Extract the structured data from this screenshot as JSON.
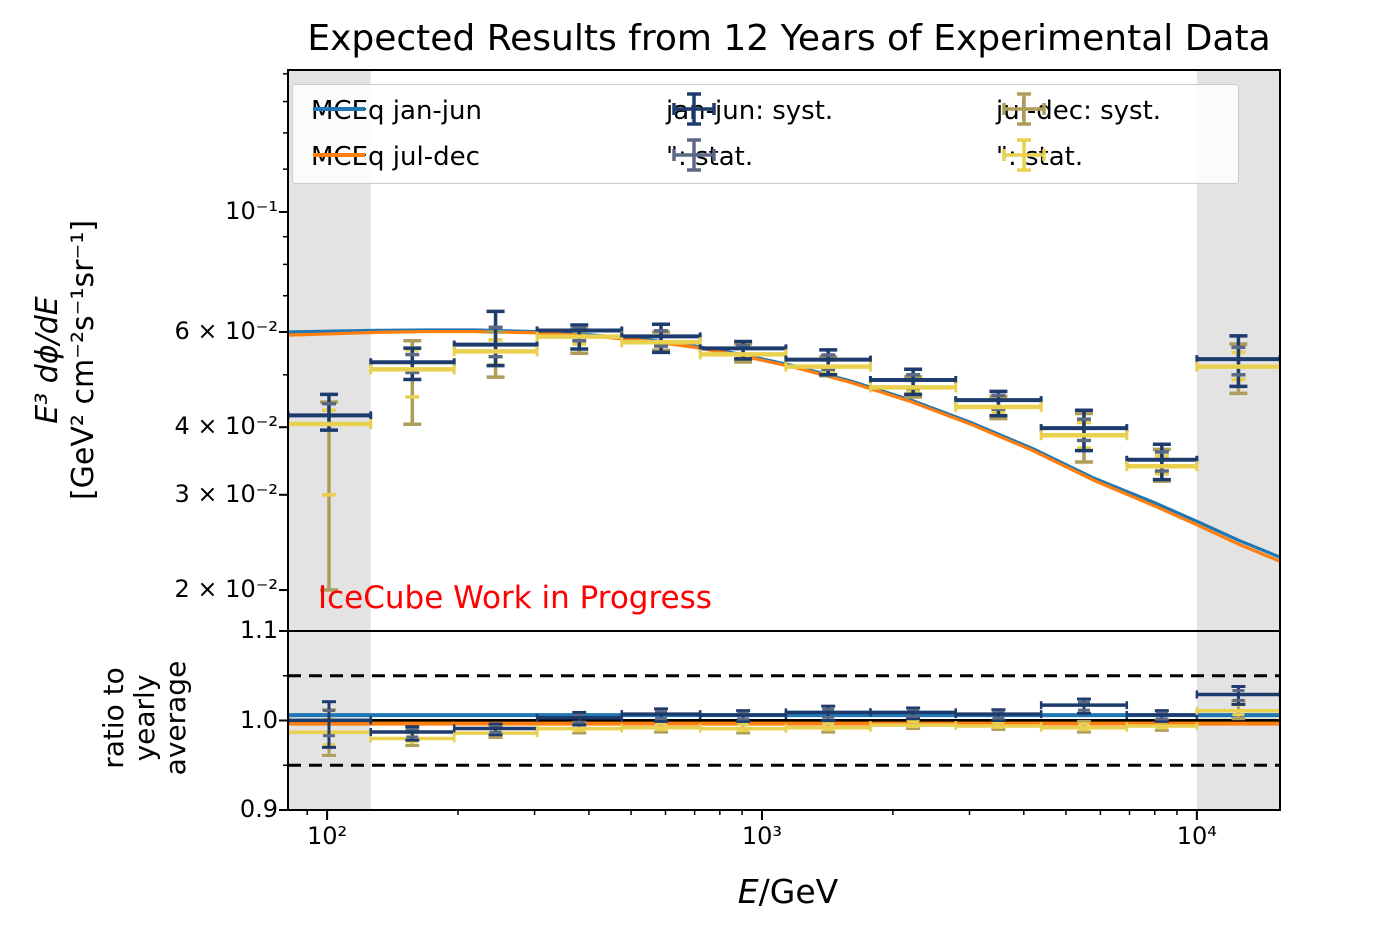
{
  "title": "Expected Results from 12 Years of Experimental Data",
  "watermark": "IceCube Work in Progress",
  "axes": {
    "y_main_label_line1": "E³ dϕ/dE",
    "y_main_label_line2": "[GeV² cm⁻²s⁻¹sr⁻¹]",
    "y_ratio_label_lines": [
      "ratio to",
      "yearly",
      "average"
    ],
    "x_label_italic": "E",
    "x_label_rest": "/GeV",
    "x_ticks": [
      {
        "value": 100,
        "label": "10²"
      },
      {
        "value": 1000,
        "label": "10³"
      },
      {
        "value": 10000,
        "label": "10⁴"
      }
    ],
    "y_main_ticks": [
      {
        "value": 0.1,
        "label": "10⁻¹"
      },
      {
        "value": 0.06,
        "label": "6 × 10⁻²"
      },
      {
        "value": 0.04,
        "label": "4 × 10⁻²"
      },
      {
        "value": 0.03,
        "label": "3 × 10⁻²"
      },
      {
        "value": 0.02,
        "label": "2 × 10⁻²"
      }
    ],
    "y_ratio_ticks": [
      {
        "value": 1.1,
        "label": "1.1"
      },
      {
        "value": 1.0,
        "label": "1.0"
      },
      {
        "value": 0.9,
        "label": "0.9"
      }
    ]
  },
  "legend": {
    "entries": [
      {
        "type": "line",
        "label": "MCEq jan-jun",
        "color": "#1f77b4",
        "col": 0,
        "row": 0
      },
      {
        "type": "line",
        "label": "MCEq jul-dec",
        "color": "#ff7f0e",
        "col": 0,
        "row": 1
      },
      {
        "type": "cross",
        "label": "jan-jun: syst.",
        "color": "#1d3b6d",
        "col": 1,
        "row": 0
      },
      {
        "type": "cross",
        "label": "\": stat.",
        "color": "#5c6985",
        "col": 1,
        "row": 1
      },
      {
        "type": "cross",
        "label": "jul-dec: syst.",
        "color": "#ad9d59",
        "col": 2,
        "row": 0
      },
      {
        "type": "cross",
        "label": "\": stat.",
        "color": "#e9d04f",
        "col": 2,
        "row": 1
      }
    ]
  },
  "colors": {
    "mceq_janjun_line": "#1f77b4",
    "mceq_juldec_line": "#ff7f0e",
    "janjun_syst": "#1d3b6d",
    "janjun_stat": "#5c6985",
    "juldec_syst": "#ad9d59",
    "juldec_stat": "#e9d04f",
    "watermark": "#ff0000",
    "shaded_band": "#e3e3e3",
    "reference_black": "#000000"
  },
  "chart_data": {
    "type": "line",
    "title": "Expected Results from 12 Years of Experimental Data",
    "xlabel": "E/GeV",
    "ylabel_top": "E³ dϕ/dE [GeV² cm⁻²s⁻¹sr⁻¹]",
    "ylabel_bottom": "ratio to yearly average",
    "xscale": "log",
    "yscale_top": "log",
    "xlim": [
      81.3,
      15530
    ],
    "ylim_top": [
      0.0168,
      0.183
    ],
    "ylim_bottom": [
      0.9,
      1.1
    ],
    "grid": false,
    "legend_position": "upper center inside",
    "shaded_regions_x": [
      [
        81.3,
        126
      ],
      [
        10000,
        15530
      ]
    ],
    "reference_lines_bottom": {
      "solid": [
        1.0
      ],
      "dashed": [
        1.05,
        0.95
      ]
    },
    "curves": [
      {
        "name": "MCEq jan-jun",
        "color": "#1f77b4",
        "x": [
          81,
          100,
          130,
          170,
          220,
          300,
          400,
          550,
          700,
          900,
          1200,
          1600,
          2200,
          3000,
          4200,
          5800,
          8000,
          10000,
          12500,
          15530
        ],
        "y": [
          0.06,
          0.0602,
          0.0604,
          0.0605,
          0.0605,
          0.0601,
          0.0593,
          0.058,
          0.0565,
          0.0545,
          0.0518,
          0.0487,
          0.0449,
          0.0409,
          0.0365,
          0.0322,
          0.029,
          0.0268,
          0.0247,
          0.023
        ],
        "ratio_to_yearly_average": 1.006
      },
      {
        "name": "MCEq jul-dec",
        "color": "#ff7f0e",
        "x": [
          81,
          100,
          130,
          170,
          220,
          300,
          400,
          550,
          700,
          900,
          1200,
          1600,
          2200,
          3000,
          4200,
          5800,
          8000,
          10000,
          12500,
          15530
        ],
        "y": [
          0.0592,
          0.0595,
          0.0599,
          0.0601,
          0.0601,
          0.0598,
          0.059,
          0.0577,
          0.0562,
          0.0542,
          0.0515,
          0.0484,
          0.0446,
          0.0406,
          0.0362,
          0.0319,
          0.0286,
          0.0264,
          0.0243,
          0.0226
        ],
        "ratio_to_yearly_average": 0.9965
      }
    ],
    "points": [
      {
        "e_lo": 81.3,
        "e": 101,
        "e_hi": 126,
        "janjun": {
          "y": 0.0418,
          "syst": [
            0.0395,
            0.046
          ],
          "stat": [
            0.0405,
            0.0442
          ],
          "ratio": 0.999,
          "ratio_err": [
            0.97,
            1.021
          ]
        },
        "juldec": {
          "y": 0.0408,
          "syst": [
            0.02,
            0.0445
          ],
          "stat": [
            0.03,
            0.043
          ],
          "ratio": 0.988,
          "ratio_err": [
            0.961,
            1.012
          ]
        }
      },
      {
        "e_lo": 126,
        "e": 157,
        "e_hi": 196,
        "janjun": {
          "y": 0.0524,
          "syst": [
            0.049,
            0.056
          ],
          "stat": [
            0.0505,
            0.0545
          ],
          "ratio": 0.986,
          "ratio_err": [
            0.978,
            0.993
          ]
        },
        "juldec": {
          "y": 0.0515,
          "syst": [
            0.0405,
            0.0578
          ],
          "stat": [
            0.0455,
            0.0556
          ],
          "ratio": 0.981,
          "ratio_err": [
            0.972,
            0.99
          ]
        }
      },
      {
        "e_lo": 196,
        "e": 244,
        "e_hi": 304,
        "janjun": {
          "y": 0.0565,
          "syst": [
            0.052,
            0.0655
          ],
          "stat": [
            0.054,
            0.0612
          ],
          "ratio": 0.99,
          "ratio_err": [
            0.984,
            0.996
          ]
        },
        "juldec": {
          "y": 0.0556,
          "syst": [
            0.0495,
            0.06
          ],
          "stat": [
            0.0522,
            0.058
          ],
          "ratio": 0.987,
          "ratio_err": [
            0.981,
            0.993
          ]
        }
      },
      {
        "e_lo": 304,
        "e": 380,
        "e_hi": 476,
        "janjun": {
          "y": 0.06,
          "syst": [
            0.0558,
            0.0618
          ],
          "stat": [
            0.0578,
            0.061
          ],
          "ratio": 1.002,
          "ratio_err": [
            0.995,
            1.009
          ]
        },
        "juldec": {
          "y": 0.0592,
          "syst": [
            0.0548,
            0.0608
          ],
          "stat": [
            0.057,
            0.0601
          ],
          "ratio": 0.992,
          "ratio_err": [
            0.986,
            0.998
          ]
        }
      },
      {
        "e_lo": 476,
        "e": 586,
        "e_hi": 721,
        "janjun": {
          "y": 0.0585,
          "syst": [
            0.055,
            0.062
          ],
          "stat": [
            0.0565,
            0.0603
          ],
          "ratio": 1.006,
          "ratio_err": [
            0.999,
            1.013
          ]
        },
        "juldec": {
          "y": 0.0578,
          "syst": [
            0.0555,
            0.06
          ],
          "stat": [
            0.0566,
            0.059
          ],
          "ratio": 0.993,
          "ratio_err": [
            0.987,
            0.999
          ]
        }
      },
      {
        "e_lo": 721,
        "e": 905,
        "e_hi": 1135,
        "janjun": {
          "y": 0.0556,
          "syst": [
            0.0535,
            0.0576
          ],
          "stat": [
            0.0545,
            0.0566
          ],
          "ratio": 1.005,
          "ratio_err": [
            0.999,
            1.011
          ]
        },
        "juldec": {
          "y": 0.0549,
          "syst": [
            0.0528,
            0.057
          ],
          "stat": [
            0.0538,
            0.056
          ],
          "ratio": 0.992,
          "ratio_err": [
            0.986,
            0.998
          ]
        }
      },
      {
        "e_lo": 1135,
        "e": 1420,
        "e_hi": 1776,
        "janjun": {
          "y": 0.053,
          "syst": [
            0.05,
            0.0556
          ],
          "stat": [
            0.0512,
            0.0544
          ],
          "ratio": 1.008,
          "ratio_err": [
            1.0,
            1.016
          ]
        },
        "juldec": {
          "y": 0.0521,
          "syst": [
            0.0498,
            0.054
          ],
          "stat": [
            0.0508,
            0.0532
          ],
          "ratio": 0.993,
          "ratio_err": [
            0.987,
            0.999
          ]
        }
      },
      {
        "e_lo": 1776,
        "e": 2226,
        "e_hi": 2789,
        "janjun": {
          "y": 0.0486,
          "syst": [
            0.046,
            0.0512
          ],
          "stat": [
            0.0472,
            0.05
          ],
          "ratio": 1.008,
          "ratio_err": [
            1.002,
            1.014
          ]
        },
        "juldec": {
          "y": 0.0477,
          "syst": [
            0.0455,
            0.0496
          ],
          "stat": [
            0.0465,
            0.0488
          ],
          "ratio": 0.996,
          "ratio_err": [
            0.991,
            1.001
          ]
        }
      },
      {
        "e_lo": 2789,
        "e": 3497,
        "e_hi": 4385,
        "janjun": {
          "y": 0.0446,
          "syst": [
            0.042,
            0.0466
          ],
          "stat": [
            0.0432,
            0.0458
          ],
          "ratio": 1.006,
          "ratio_err": [
            1.0,
            1.012
          ]
        },
        "juldec": {
          "y": 0.0439,
          "syst": [
            0.0415,
            0.0456
          ],
          "stat": [
            0.0426,
            0.045
          ],
          "ratio": 0.995,
          "ratio_err": [
            0.99,
            1.0
          ]
        }
      },
      {
        "e_lo": 4385,
        "e": 5500,
        "e_hi": 6900,
        "janjun": {
          "y": 0.0396,
          "syst": [
            0.0362,
            0.043
          ],
          "stat": [
            0.0378,
            0.0414
          ],
          "ratio": 1.016,
          "ratio_err": [
            1.008,
            1.024
          ]
        },
        "juldec": {
          "y": 0.0389,
          "syst": [
            0.0345,
            0.0424
          ],
          "stat": [
            0.0366,
            0.0408
          ],
          "ratio": 0.993,
          "ratio_err": [
            0.987,
            0.999
          ]
        }
      },
      {
        "e_lo": 6900,
        "e": 8307,
        "e_hi": 10000,
        "janjun": {
          "y": 0.0346,
          "syst": [
            0.032,
            0.0372
          ],
          "stat": [
            0.0332,
            0.036
          ],
          "ratio": 1.005,
          "ratio_err": [
            0.999,
            1.011
          ]
        },
        "juldec": {
          "y": 0.0341,
          "syst": [
            0.0318,
            0.0364
          ],
          "stat": [
            0.0328,
            0.0354
          ],
          "ratio": 0.995,
          "ratio_err": [
            0.989,
            1.001
          ]
        }
      },
      {
        "e_lo": 10000,
        "e": 12462,
        "e_hi": 15530,
        "janjun": {
          "y": 0.0531,
          "syst": [
            0.0476,
            0.059
          ],
          "stat": [
            0.05,
            0.0562
          ],
          "ratio": 1.028,
          "ratio_err": [
            1.018,
            1.038
          ]
        },
        "juldec": {
          "y": 0.0521,
          "syst": [
            0.0462,
            0.057
          ],
          "stat": [
            0.049,
            0.055
          ],
          "ratio": 1.012,
          "ratio_err": [
            1.002,
            1.022
          ]
        }
      }
    ]
  }
}
